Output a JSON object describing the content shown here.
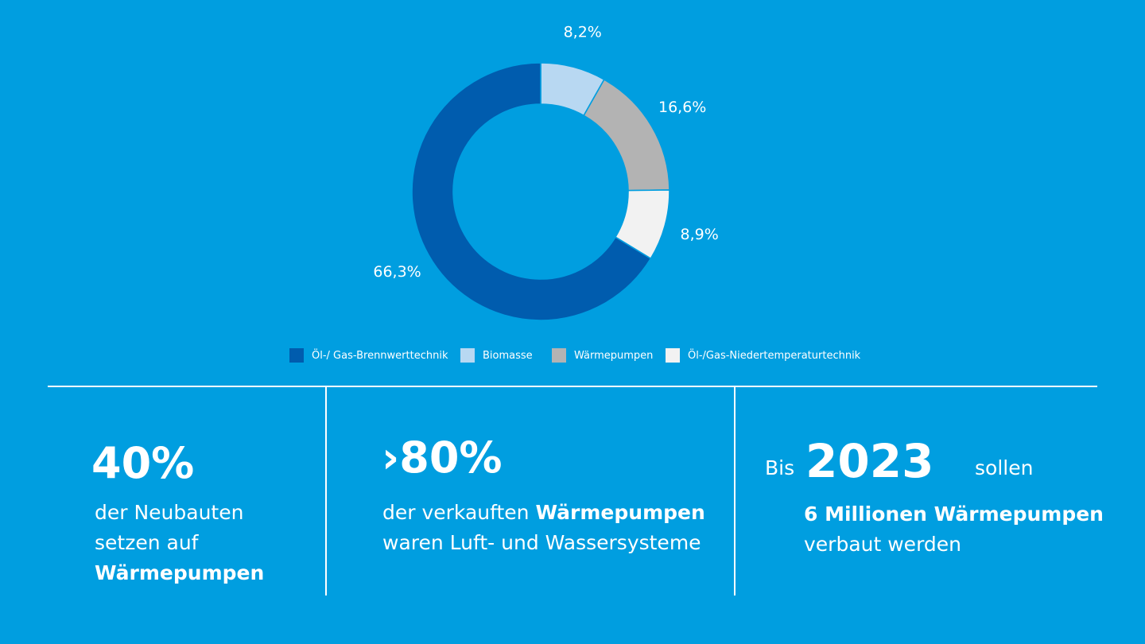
{
  "colors": {
    "background": "#009EE0",
    "text": "#FFFFFF"
  },
  "chart_data": {
    "type": "pie",
    "donut": true,
    "slices": [
      {
        "name": "Biomasse",
        "value": 8.2,
        "label": "8,2%",
        "color": "#B8D8F2"
      },
      {
        "name": "Wärmepumpen",
        "value": 16.6,
        "label": "16,6%",
        "color": "#B3B3B3"
      },
      {
        "name": "Öl-/Gas-Niedertemperaturtechnik",
        "value": 8.9,
        "label": "8,9%",
        "color": "#F2F2F2"
      },
      {
        "name": "Öl-/ Gas-Brennwerttechnik",
        "value": 66.3,
        "label": "66,3%",
        "color": "#005CAE"
      }
    ],
    "legend": [
      {
        "label": "Öl-/ Gas-Brennwerttechnik",
        "color": "#005CAE"
      },
      {
        "label": "Biomasse",
        "color": "#B8D8F2"
      },
      {
        "label": "Wärmepumpen",
        "color": "#B3B3B3"
      },
      {
        "label": "Öl-/Gas-Niedertemperaturtechnik",
        "color": "#F2F2F2"
      }
    ],
    "legend_position": "bottom"
  },
  "stats": [
    {
      "big": "40%",
      "lines": [
        "der Neubauten",
        "setzen auf",
        "Wärmepumpen"
      ]
    },
    {
      "big": "›80%",
      "line1_prefix": "der verkauften",
      "line1_strong": "Wärmepumpen",
      "line2": "waren Luft- und Wassersysteme"
    },
    {
      "pre": "Bis",
      "big": "2023",
      "post": "sollen",
      "strong_line": "6 Millionen Wärmepumpen",
      "line": "verbaut werden"
    }
  ]
}
